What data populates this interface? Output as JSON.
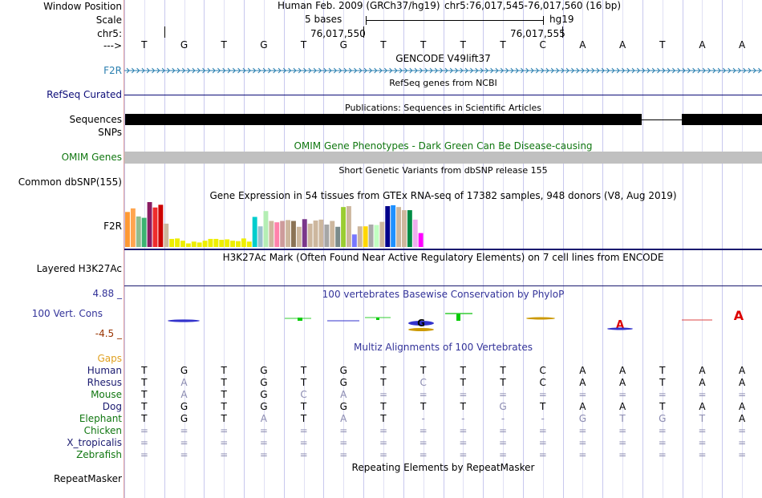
{
  "colors": {
    "navy": "#1a1a70",
    "refseq": "#0c0c78",
    "gencode": "#2a7fb0",
    "omim": "#117711",
    "cons": "#333399",
    "cons_low": "#993300",
    "gaps": "#e0a020",
    "grey_band": "#c0c0c0"
  },
  "header": {
    "window_position_label": "Window Position",
    "scale_label": "Scale",
    "chr_label": "chr5:",
    "strand_label": "--->",
    "assembly": "Human Feb. 2009 (GRCh37/hg19)",
    "position": "chr5:76,017,545-76,017,560 (16 bp)",
    "scale_text": "5 bases",
    "scale_db": "hg19",
    "coord_1": "76,017,550",
    "coord_2": "76,017,555"
  },
  "bases": [
    "T",
    "G",
    "T",
    "G",
    "T",
    "G",
    "T",
    "T",
    "T",
    "T",
    "C",
    "A",
    "A",
    "T",
    "A",
    "A"
  ],
  "tracks": {
    "gencode_title": "GENCODE V49lift37",
    "gencode_label": "F2R",
    "refseq_title": "RefSeq genes from NCBI",
    "refseq_label": "RefSeq Curated",
    "pubs_title": "Publications: Sequences in Scientific Articles",
    "pubs_label": "Sequences",
    "snps_label": "SNPs",
    "omim_title": "OMIM Gene Phenotypes - Dark Green Can Be Disease-causing",
    "omim_label": "OMIM Genes",
    "dbsnp_title": "Short Genetic Variants from dbSNP release 155",
    "dbsnp_label": "Common dbSNP(155)",
    "gtex_title": "Gene Expression in 54 tissues from GTEx RNA-seq of 17382 samples, 948 donors (V8, Aug 2019)",
    "gtex_label": "F2R",
    "h3k27_title": "H3K27Ac Mark (Often Found Near Active Regulatory Elements) on 7 cell lines from ENCODE",
    "h3k27_label": "Layered H3K27Ac",
    "cons_title": "100 vertebrates Basewise Conservation by PhyloP",
    "cons_label": "100 Vert. Cons",
    "cons_max": "4.88 _",
    "cons_min": "-4.5 _",
    "multiz_title": "Multiz Alignments of 100 Vertebrates",
    "gaps_label": "Gaps",
    "rmsk_title": "Repeating Elements by RepeatMasker",
    "rmsk_label": "RepeatMasker"
  },
  "gtex_values": [
    0.78,
    0.86,
    0.68,
    0.65,
    1.0,
    0.88,
    0.94,
    0.52,
    0.18,
    0.19,
    0.14,
    0.08,
    0.12,
    0.1,
    0.14,
    0.18,
    0.18,
    0.16,
    0.17,
    0.14,
    0.13,
    0.19,
    0.12,
    0.67,
    0.46,
    0.8,
    0.58,
    0.55,
    0.58,
    0.6,
    0.58,
    0.45,
    0.62,
    0.52,
    0.59,
    0.61,
    0.5,
    0.58,
    0.45,
    0.89,
    0.91,
    0.28,
    0.46,
    0.46,
    0.5,
    0.49,
    0.56,
    0.91,
    0.93,
    0.89,
    0.82,
    0.82,
    0.61,
    0.31
  ],
  "gtex_colors": [
    "#ff9933",
    "#ffa54f",
    "#8fbc8f",
    "#3cb371",
    "#8b1c62",
    "#ee2c2c",
    "#cd0000",
    "#cdb79e",
    "#eeee00",
    "#eeee00",
    "#eeee00",
    "#eeee00",
    "#eeee00",
    "#eeee00",
    "#eeee00",
    "#eeee00",
    "#eeee00",
    "#eeee00",
    "#eeee00",
    "#eeee00",
    "#eeee00",
    "#eeee00",
    "#eeee00",
    "#00cdcd",
    "#9ac0cd",
    "#b4eeb4",
    "#cdb79e",
    "#ff82ab",
    "#cd9b9b",
    "#cdb79e",
    "#8b7355",
    "#cdb79e",
    "#7a378b",
    "#cdb79e",
    "#cdb79e",
    "#cdb79e",
    "#a6a6a6",
    "#cdb79e",
    "#7a8b8b",
    "#9acd32",
    "#cdb79e",
    "#7777ff",
    "#cdb79e",
    "#ffd700",
    "#aaaaaa",
    "#c1ffc1",
    "#cdb79e",
    "#00008b",
    "#1e90ff",
    "#cdb79e",
    "#cdb79e",
    "#008b45",
    "#eeaeee",
    "#ff00ff"
  ],
  "multiz": [
    {
      "species": "Human",
      "color": "#1a1a70",
      "seq": [
        "T",
        "G",
        "T",
        "G",
        "T",
        "G",
        "T",
        "T",
        "T",
        "T",
        "C",
        "A",
        "A",
        "T",
        "A",
        "A"
      ]
    },
    {
      "species": "Rhesus",
      "color": "#1a1a70",
      "seq": [
        "T",
        "A",
        "T",
        "G",
        "T",
        "G",
        "T",
        "C",
        "T",
        "T",
        "C",
        "A",
        "A",
        "T",
        "A",
        "A"
      ]
    },
    {
      "species": "Mouse",
      "color": "#117711",
      "seq": [
        "T",
        "A",
        "T",
        "G",
        "C",
        "A",
        "=",
        "=",
        "=",
        "=",
        "=",
        "=",
        "=",
        "=",
        "=",
        "="
      ]
    },
    {
      "species": "Dog",
      "color": "#1a1a70",
      "seq": [
        "T",
        "G",
        "T",
        "G",
        "T",
        "G",
        "T",
        "T",
        "T",
        "G",
        "T",
        "A",
        "A",
        "T",
        "A",
        "A"
      ]
    },
    {
      "species": "Elephant",
      "color": "#117711",
      "seq": [
        "T",
        "G",
        "T",
        "A",
        "T",
        "A",
        "T",
        "-",
        "-",
        "-",
        "-",
        "G",
        "T",
        "G",
        "T",
        "A"
      ]
    },
    {
      "species": "Chicken",
      "color": "#117711",
      "seq": [
        "=",
        "=",
        "=",
        "=",
        "=",
        "=",
        "=",
        "=",
        "=",
        "=",
        "=",
        "=",
        "=",
        "=",
        "=",
        "="
      ]
    },
    {
      "species": "X_tropicalis",
      "color": "#1a1a70",
      "seq": [
        "=",
        "=",
        "=",
        "=",
        "=",
        "=",
        "=",
        "=",
        "=",
        "=",
        "=",
        "=",
        "=",
        "=",
        "=",
        "="
      ]
    },
    {
      "species": "Zebrafish",
      "color": "#117711",
      "seq": [
        "=",
        "=",
        "=",
        "=",
        "=",
        "=",
        "=",
        "=",
        "=",
        "=",
        "=",
        "=",
        "=",
        "=",
        "=",
        "="
      ]
    }
  ],
  "faded": [
    [],
    [
      1,
      7
    ],
    [
      1,
      4,
      5,
      6,
      7,
      8,
      9,
      10,
      11,
      12,
      13,
      14,
      15
    ],
    [
      9
    ],
    [
      3,
      5,
      7,
      8,
      9,
      10,
      11,
      12,
      13,
      14
    ],
    [
      0,
      1,
      2,
      3,
      4,
      5,
      6,
      7,
      8,
      9,
      10,
      11,
      12,
      13,
      14,
      15
    ],
    [
      0,
      1,
      2,
      3,
      4,
      5,
      6,
      7,
      8,
      9,
      10,
      11,
      12,
      13,
      14,
      15
    ],
    [
      0,
      1,
      2,
      3,
      4,
      5,
      6,
      7,
      8,
      9,
      10,
      11,
      12,
      13,
      14,
      15
    ]
  ]
}
